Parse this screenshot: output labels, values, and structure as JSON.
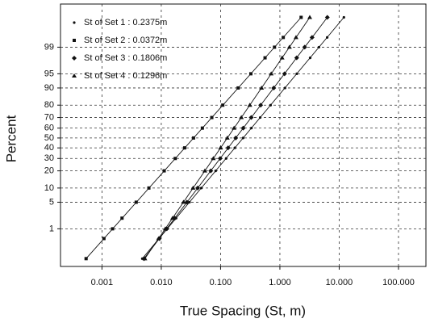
{
  "chart_data": {
    "type": "probability",
    "xlabel": "True Spacing (St, m)",
    "ylabel": "Percent",
    "xscale": "log",
    "yscale": "normal-probability",
    "xlim": [
      0.0002,
      290
    ],
    "ylim": [
      0.05,
      99.97
    ],
    "xticks": [
      0.001,
      {
        "value": 0.01,
        "label": "0.010"
      },
      {
        "value": 0.1,
        "label": "0.100"
      },
      {
        "value": 1,
        "label": "1.000"
      },
      {
        "value": 10,
        "label": "10.000"
      },
      {
        "value": 100,
        "label": "100.000"
      }
    ],
    "yticks": [
      1,
      5,
      10,
      20,
      30,
      40,
      50,
      60,
      70,
      80,
      90,
      95,
      99
    ],
    "grid": true,
    "legend": "upper left",
    "series": [
      {
        "name": "St of Set 1 : 0.2375m",
        "marker": "dot",
        "color": "#111111",
        "x": [
          0.00479,
          0.00919,
          0.0126,
          0.0178,
          0.0299,
          0.0473,
          0.0826,
          0.124,
          0.174,
          0.24,
          0.331,
          0.466,
          0.697,
          1.22,
          1.93,
          3.24,
          4.56,
          6.27,
          12.0
        ],
        "values": [
          0.1,
          0.5,
          1,
          2,
          5,
          10,
          20,
          30,
          40,
          50,
          60,
          70,
          80,
          90,
          95,
          98,
          99,
          99.5,
          99.9
        ]
      },
      {
        "name": "St of Set 2 : 0.0372m",
        "marker": "square",
        "color": "#111111",
        "x": [
          0.00054,
          0.00108,
          0.00151,
          0.00218,
          0.00378,
          0.00618,
          0.0112,
          0.0172,
          0.0248,
          0.035,
          0.0493,
          0.0711,
          0.109,
          0.198,
          0.324,
          0.562,
          0.811,
          1.14,
          2.28
        ],
        "values": [
          0.1,
          0.5,
          1,
          2,
          5,
          10,
          20,
          30,
          40,
          50,
          60,
          70,
          80,
          90,
          95,
          98,
          99,
          99.5,
          99.9
        ]
      },
      {
        "name": "St of Set 3 : 0.1806m",
        "marker": "diamond",
        "color": "#111111",
        "x": [
          0.00513,
          0.00927,
          0.0124,
          0.0169,
          0.0271,
          0.0411,
          0.0683,
          0.0985,
          0.134,
          0.18,
          0.241,
          0.329,
          0.474,
          0.788,
          1.2,
          1.92,
          2.62,
          3.49,
          6.31
        ],
        "values": [
          0.1,
          0.5,
          1,
          2,
          5,
          10,
          20,
          30,
          40,
          50,
          60,
          70,
          80,
          90,
          95,
          98,
          99,
          99.5,
          99.9
        ]
      },
      {
        "name": "St of Set 4 : 0.1296m",
        "marker": "triangle",
        "color": "#111111",
        "x": [
          0.00529,
          0.00901,
          0.0117,
          0.0155,
          0.0237,
          0.0344,
          0.0543,
          0.0755,
          0.1,
          0.13,
          0.169,
          0.224,
          0.311,
          0.491,
          0.714,
          1.09,
          1.45,
          1.87,
          3.19
        ],
        "values": [
          0.1,
          0.5,
          1,
          2,
          5,
          10,
          20,
          30,
          40,
          50,
          60,
          70,
          80,
          90,
          95,
          98,
          99,
          99.5,
          99.9
        ]
      }
    ]
  }
}
